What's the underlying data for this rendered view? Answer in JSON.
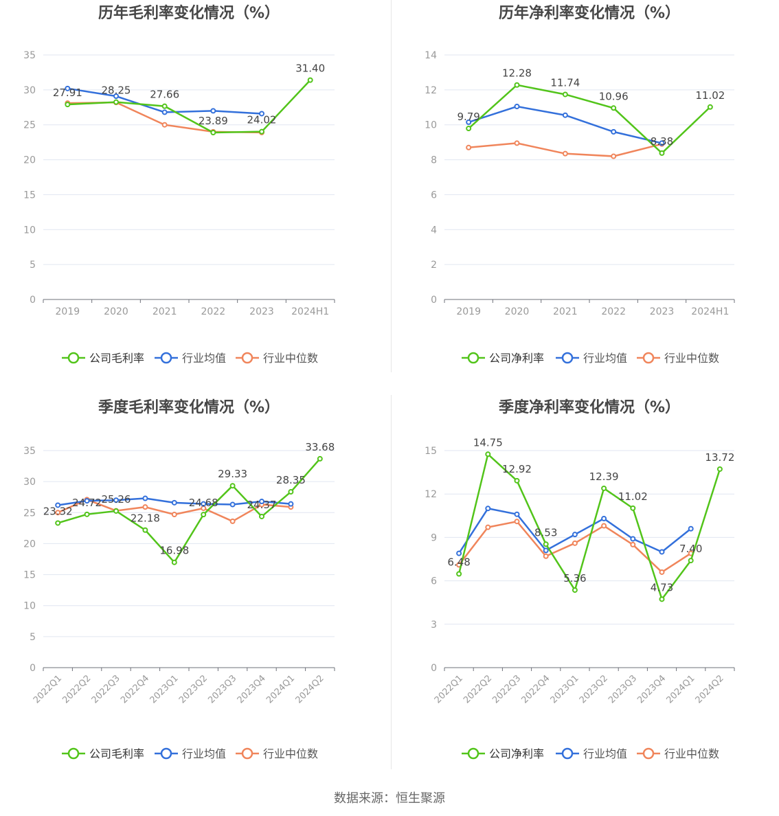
{
  "colors": {
    "company": "#52c41a",
    "average": "#3370db",
    "median": "#f0855b",
    "axis": "#6e7079",
    "grid": "#e0e6f1",
    "title": "#464646",
    "tick": "#999999",
    "label": "#444444"
  },
  "source_text": "数据来源：恒生聚源",
  "chart_data": [
    {
      "id": "annual-gross",
      "type": "line",
      "title": "历年毛利率变化情况（%）",
      "categories": [
        "2019",
        "2020",
        "2021",
        "2022",
        "2023",
        "2024H1"
      ],
      "ylim": [
        0,
        35
      ],
      "yticks": [
        0,
        5,
        10,
        15,
        20,
        25,
        30,
        35
      ],
      "grid": true,
      "legend_position": "bottom",
      "series": [
        {
          "name": "公司毛利率",
          "key": "company",
          "values": [
            27.91,
            28.25,
            27.66,
            23.89,
            24.02,
            31.4
          ],
          "labels": [
            "27.91",
            "28.25",
            "27.66",
            "23.89",
            "24.02",
            "31.40"
          ]
        },
        {
          "name": "行业均值",
          "key": "average",
          "values": [
            30.2,
            29.1,
            26.8,
            27.0,
            26.6,
            null
          ]
        },
        {
          "name": "行业中位数",
          "key": "median",
          "values": [
            28.1,
            28.2,
            25.0,
            24.0,
            23.9,
            null
          ]
        }
      ]
    },
    {
      "id": "annual-net",
      "type": "line",
      "title": "历年净利率变化情况（%）",
      "categories": [
        "2019",
        "2020",
        "2021",
        "2022",
        "2023",
        "2024H1"
      ],
      "ylim": [
        0,
        14
      ],
      "yticks": [
        0,
        2,
        4,
        6,
        8,
        10,
        12,
        14
      ],
      "grid": true,
      "legend_position": "bottom",
      "series": [
        {
          "name": "公司净利率",
          "key": "company",
          "values": [
            9.79,
            12.28,
            11.74,
            10.96,
            8.38,
            11.02
          ],
          "labels": [
            "9.79",
            "12.28",
            "11.74",
            "10.96",
            "8.38",
            "11.02"
          ]
        },
        {
          "name": "行业均值",
          "key": "average",
          "values": [
            10.15,
            11.05,
            10.55,
            9.6,
            8.95,
            null
          ]
        },
        {
          "name": "行业中位数",
          "key": "median",
          "values": [
            8.7,
            8.95,
            8.35,
            8.2,
            8.9,
            null
          ]
        }
      ]
    },
    {
      "id": "quarter-gross",
      "type": "line",
      "title": "季度毛利率变化情况（%）",
      "categories": [
        "2022Q1",
        "2022Q2",
        "2022Q3",
        "2022Q4",
        "2023Q1",
        "2023Q2",
        "2023Q3",
        "2023Q4",
        "2024Q1",
        "2024Q2"
      ],
      "ylim": [
        0,
        35
      ],
      "yticks": [
        0,
        5,
        10,
        15,
        20,
        25,
        30,
        35
      ],
      "grid": true,
      "legend_position": "bottom",
      "rotate_x": true,
      "series": [
        {
          "name": "公司毛利率",
          "key": "company",
          "values": [
            23.32,
            24.72,
            25.26,
            22.18,
            16.98,
            24.68,
            29.33,
            24.37,
            28.35,
            33.68
          ],
          "labels": [
            "23.32",
            "24.72",
            "25.26",
            "22.18",
            "16.98",
            "24.68",
            "29.33",
            "24.37",
            "28.35",
            "33.68"
          ]
        },
        {
          "name": "行业均值",
          "key": "average",
          "values": [
            26.2,
            26.9,
            27.0,
            27.3,
            26.6,
            26.4,
            26.3,
            26.8,
            26.4,
            null
          ]
        },
        {
          "name": "行业中位数",
          "key": "median",
          "values": [
            25.0,
            27.1,
            25.3,
            25.9,
            24.7,
            25.7,
            23.6,
            26.3,
            25.9,
            null
          ]
        }
      ]
    },
    {
      "id": "quarter-net",
      "type": "line",
      "title": "季度净利率变化情况（%）",
      "categories": [
        "2022Q1",
        "2022Q2",
        "2022Q3",
        "2022Q4",
        "2023Q1",
        "2023Q2",
        "2023Q3",
        "2023Q4",
        "2024Q1",
        "2024Q2"
      ],
      "ylim": [
        0,
        15
      ],
      "yticks": [
        0,
        3,
        6,
        9,
        12,
        15
      ],
      "grid": true,
      "legend_position": "bottom",
      "rotate_x": true,
      "series": [
        {
          "name": "公司净利率",
          "key": "company",
          "values": [
            6.48,
            14.75,
            12.92,
            8.53,
            5.36,
            12.39,
            11.02,
            4.73,
            7.4,
            13.72
          ],
          "labels": [
            "6.48",
            "14.75",
            "12.92",
            "8.53",
            "5.36",
            "12.39",
            "11.02",
            "4.73",
            "7.40",
            "13.72"
          ]
        },
        {
          "name": "行业均值",
          "key": "average",
          "values": [
            7.9,
            11.0,
            10.6,
            8.1,
            9.2,
            10.3,
            8.9,
            8.0,
            9.6,
            null
          ]
        },
        {
          "name": "行业中位数",
          "key": "median",
          "values": [
            7.1,
            9.7,
            10.1,
            7.7,
            8.6,
            9.8,
            8.5,
            6.6,
            7.9,
            null
          ]
        }
      ]
    }
  ]
}
